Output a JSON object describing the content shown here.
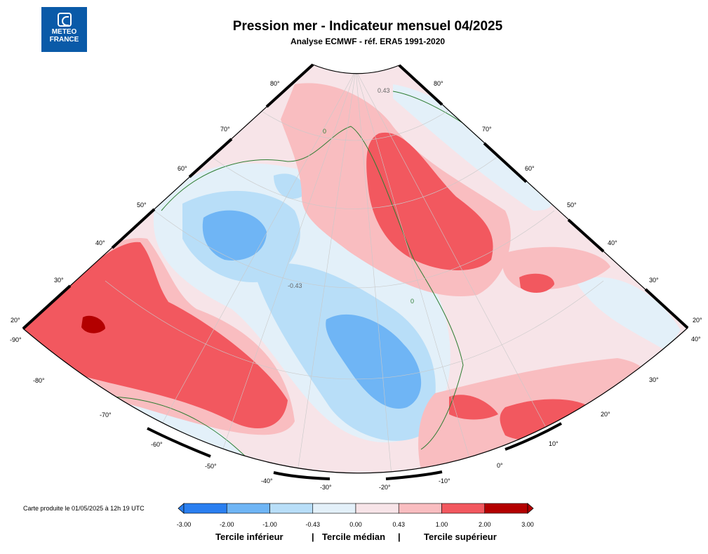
{
  "header": {
    "title": "Pression mer - Indicateur mensuel 04/2025",
    "subtitle": "Analyse ECMWF - réf. ERA5 1991-2020",
    "logo_line1": "METEO",
    "logo_line2": "FRANCE"
  },
  "footer": {
    "credit": "Carte produite le 01/05/2025 à 12h 19 UTC"
  },
  "colorbar": {
    "ticks": [
      "-3.00",
      "-2.00",
      "-1.00",
      "-0.43",
      "0.00",
      "0.43",
      "1.00",
      "2.00",
      "3.00"
    ],
    "colors": [
      "#2a7ff0",
      "#6fb5f5",
      "#b8def8",
      "#e3f0f9",
      "#f7e4e8",
      "#f9bdc0",
      "#f2585f",
      "#b30000"
    ],
    "categories": [
      "Tercile inférieur",
      "Tercile médian",
      "Tercile supérieur"
    ],
    "separator": "|"
  },
  "map": {
    "longitude_labels": [
      "-90°",
      "-80°",
      "-70°",
      "-60°",
      "-50°",
      "-40°",
      "-30°",
      "-20°",
      "-10°",
      "0°",
      "10°",
      "20°",
      "30°",
      "40°"
    ],
    "latitude_labels_left": [
      "20°",
      "30°",
      "40°",
      "50°",
      "60°",
      "70°",
      "80°"
    ],
    "latitude_labels_right": [
      "80°",
      "70°",
      "60°",
      "50°",
      "40°",
      "30°",
      "20°"
    ],
    "contour_labels": [
      "0",
      "-0.43",
      "0.43"
    ]
  }
}
